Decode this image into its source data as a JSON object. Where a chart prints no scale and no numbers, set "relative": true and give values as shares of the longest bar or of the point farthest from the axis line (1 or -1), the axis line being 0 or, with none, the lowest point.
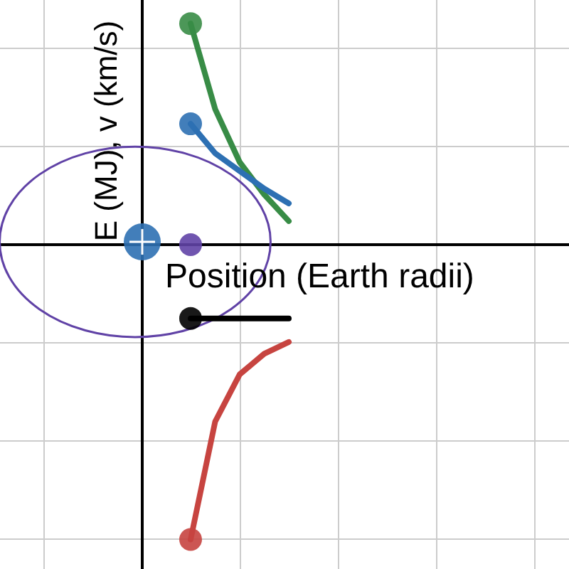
{
  "chart_data": {
    "type": "line",
    "relative": true,
    "xlabel": "Position (Earth radii)",
    "ylabel": "E (MJ), v (km/s)",
    "categories": [
      null,
      null,
      null,
      null,
      null
    ],
    "grid": true,
    "line_style": "solid",
    "series": [
      {
        "color": "#388c46",
        "values": [
          0.75,
          0.46,
          0.28,
          0.17,
          0.08
        ]
      },
      {
        "color": "#2d70b3",
        "values": [
          0.41,
          0.31,
          0.25,
          0.19,
          0.14
        ]
      },
      {
        "color": "#c74440",
        "values": [
          -1,
          -0.6,
          -0.44,
          -0.37,
          -0.33
        ]
      },
      {
        "color": "#000000",
        "values": [
          -0.25,
          -0.25,
          -0.25,
          -0.25,
          -0.25
        ]
      }
    ]
  }
}
